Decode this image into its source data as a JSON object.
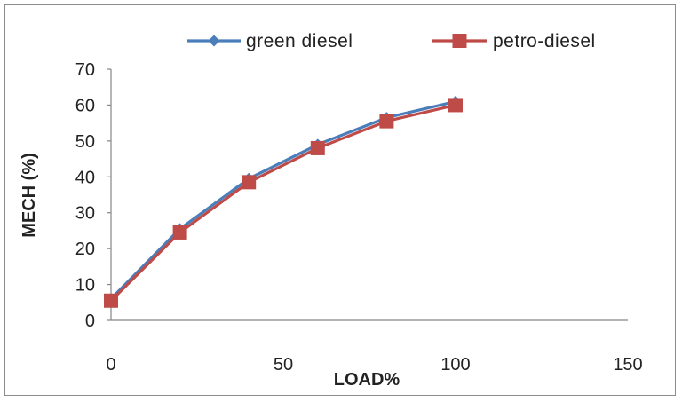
{
  "chart_data": {
    "type": "line",
    "title": "",
    "xlabel": "LOAD%",
    "ylabel": "MECH (%)",
    "xlim": [
      0,
      150
    ],
    "ylim": [
      0,
      70
    ],
    "x_ticks": [
      "0",
      "50",
      "100",
      "150"
    ],
    "y_ticks": [
      "0",
      "10",
      "20",
      "30",
      "40",
      "50",
      "60",
      "70"
    ],
    "grid": false,
    "legend_position": "top",
    "x": [
      0,
      20,
      40,
      60,
      80,
      100
    ],
    "series": [
      {
        "name": "green diesel",
        "marker": "diamond",
        "color": "#4a7ebb",
        "values": [
          6,
          25.5,
          39.5,
          49,
          56.5,
          61
        ]
      },
      {
        "name": "petro-diesel",
        "marker": "square",
        "color": "#be4b48",
        "values": [
          5.5,
          24.5,
          38.5,
          48,
          55.5,
          60
        ]
      }
    ]
  }
}
